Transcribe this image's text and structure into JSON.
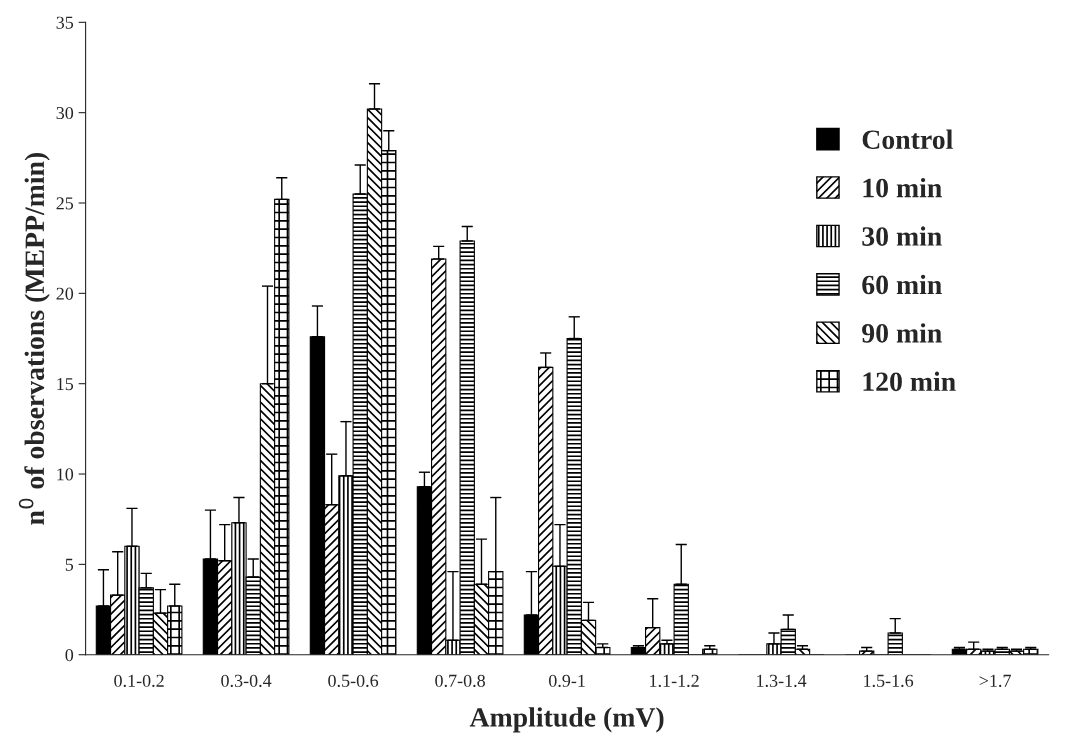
{
  "chart_data": {
    "type": "bar",
    "xlabel": "Amplitude (mV)",
    "ylabel": "n$^{0}$ of observations (MEPP/min)",
    "categories": [
      "0.1-0.2",
      "0.3-0.4",
      "0.5-0.6",
      "0.7-0.8",
      "0.9-1",
      "1.1-1.2",
      "1.3-1.4",
      "1.5-1.6",
      ">1.7"
    ],
    "ylim": [
      0,
      35
    ],
    "yticks": [
      0,
      5,
      10,
      15,
      20,
      25,
      30,
      35
    ],
    "grid": false,
    "legend": "right",
    "series": [
      {
        "name": "Control",
        "color": "#000000",
        "values": [
          2.7,
          5.3,
          17.6,
          9.3,
          2.2,
          0.4,
          0,
          0,
          0.3
        ],
        "errors": [
          [
            2.7,
            4.7
          ],
          [
            5.3,
            8.0
          ],
          [
            17.6,
            19.3
          ],
          [
            9.3,
            10.1
          ],
          [
            2.2,
            4.6
          ],
          [
            0.4,
            0.5
          ],
          null,
          null,
          [
            0.3,
            0.4
          ]
        ]
      },
      {
        "name": "10 min",
        "color": "#000000",
        "values": [
          3.3,
          5.2,
          8.3,
          21.9,
          15.9,
          1.5,
          0,
          0.2,
          0.3
        ],
        "errors": [
          [
            3.3,
            5.7
          ],
          [
            5.2,
            7.2
          ],
          [
            8.3,
            11.1
          ],
          [
            21.9,
            22.6
          ],
          [
            15.9,
            16.7
          ],
          [
            1.5,
            3.1
          ],
          null,
          [
            0.2,
            0.4
          ],
          [
            0.3,
            0.7
          ]
        ]
      },
      {
        "name": "30 min",
        "color": "#000000",
        "values": [
          6.0,
          7.3,
          9.9,
          0.8,
          4.9,
          0.6,
          0.6,
          0,
          0.2
        ],
        "errors": [
          [
            6.0,
            8.1
          ],
          [
            7.3,
            8.7
          ],
          [
            9.9,
            12.9
          ],
          [
            0.8,
            4.6
          ],
          [
            4.9,
            7.2
          ],
          [
            0.6,
            0.8
          ],
          [
            0.6,
            1.2
          ],
          null,
          [
            0.2,
            0.3
          ]
        ]
      },
      {
        "name": "60 min",
        "color": "#000000",
        "values": [
          3.7,
          4.3,
          25.5,
          22.9,
          17.5,
          3.9,
          1.4,
          1.2,
          0.3
        ],
        "errors": [
          [
            3.7,
            4.5
          ],
          [
            4.3,
            5.3
          ],
          [
            25.5,
            27.1
          ],
          [
            22.9,
            23.7
          ],
          [
            17.5,
            18.7
          ],
          [
            3.9,
            6.1
          ],
          [
            1.4,
            2.2
          ],
          [
            1.2,
            2.0
          ],
          [
            0.3,
            0.4
          ]
        ]
      },
      {
        "name": "90 min",
        "color": "#000000",
        "values": [
          2.3,
          15.0,
          30.2,
          3.9,
          1.9,
          0,
          0.3,
          0,
          0.2
        ],
        "errors": [
          [
            2.3,
            3.6
          ],
          [
            15.0,
            20.4
          ],
          [
            30.2,
            31.6
          ],
          [
            3.9,
            6.4
          ],
          [
            1.9,
            2.9
          ],
          null,
          [
            0.3,
            0.5
          ],
          null,
          [
            0.2,
            0.3
          ]
        ]
      },
      {
        "name": "120 min",
        "color": "#000000",
        "values": [
          2.7,
          25.2,
          27.9,
          4.6,
          0.4,
          0.3,
          0,
          0,
          0.3
        ],
        "errors": [
          [
            2.7,
            3.9
          ],
          [
            25.2,
            26.4
          ],
          [
            27.9,
            29.0
          ],
          [
            4.6,
            8.7
          ],
          [
            0.4,
            0.6
          ],
          [
            0.3,
            0.5
          ],
          null,
          null,
          [
            0.3,
            0.4
          ]
        ]
      }
    ]
  }
}
